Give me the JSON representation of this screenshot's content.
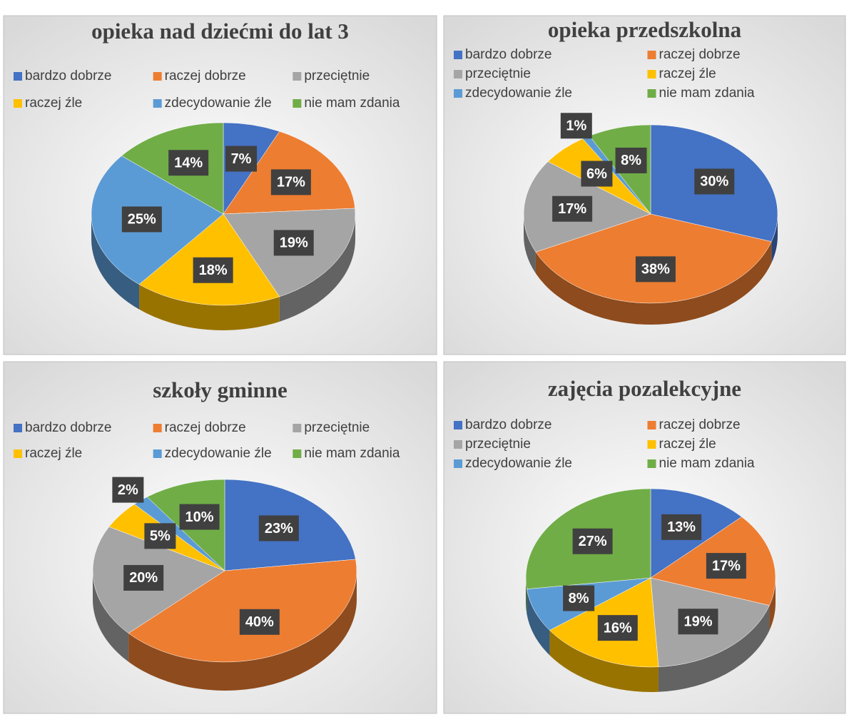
{
  "chart_data": [
    {
      "type": "pie",
      "title": "opieka nad dziećmi do lat 3",
      "categories": [
        "bardzo dobrze",
        "raczej dobrze",
        "przeciętnie",
        "raczej źle",
        "zdecydowanie źle",
        "nie mam zdania"
      ],
      "values": [
        7,
        17,
        19,
        18,
        25,
        14
      ],
      "value_labels": [
        "7%",
        "17%",
        "19%",
        "18%",
        "25%",
        "14%"
      ],
      "colors": [
        "#4472c4",
        "#ed7d31",
        "#a5a5a5",
        "#ffc000",
        "#5b9bd5",
        "#70ad47"
      ],
      "legend_columns": 3
    },
    {
      "type": "pie",
      "title": "opieka przedszkolna",
      "categories": [
        "bardzo dobrze",
        "raczej dobrze",
        "przeciętnie",
        "raczej źle",
        "zdecydowanie źle",
        "nie mam zdania"
      ],
      "values": [
        30,
        38,
        17,
        6,
        1,
        8
      ],
      "value_labels": [
        "30%",
        "38%",
        "17%",
        "6%",
        "1%",
        "8%"
      ],
      "colors": [
        "#4472c4",
        "#ed7d31",
        "#a5a5a5",
        "#ffc000",
        "#5b9bd5",
        "#70ad47"
      ],
      "legend_columns": 2
    },
    {
      "type": "pie",
      "title": "szkoły gminne",
      "categories": [
        "bardzo dobrze",
        "raczej dobrze",
        "przeciętnie",
        "raczej źle",
        "zdecydowanie źle",
        "nie mam zdania"
      ],
      "values": [
        23,
        40,
        20,
        5,
        2,
        10
      ],
      "value_labels": [
        "23%",
        "40%",
        "20%",
        "5%",
        "2%",
        "10%"
      ],
      "colors": [
        "#4472c4",
        "#ed7d31",
        "#a5a5a5",
        "#ffc000",
        "#5b9bd5",
        "#70ad47"
      ],
      "legend_columns": 3
    },
    {
      "type": "pie",
      "title": "zajęcia pozalekcyjne",
      "categories": [
        "bardzo dobrze",
        "raczej dobrze",
        "przeciętnie",
        "raczej źle",
        "zdecydowanie źle",
        "nie mam zdania"
      ],
      "values": [
        13,
        17,
        19,
        16,
        8,
        27
      ],
      "value_labels": [
        "13%",
        "17%",
        "19%",
        "16%",
        "8%",
        "27%"
      ],
      "colors": [
        "#4472c4",
        "#ed7d31",
        "#a5a5a5",
        "#ffc000",
        "#5b9bd5",
        "#70ad47"
      ],
      "legend_columns": 2
    }
  ]
}
